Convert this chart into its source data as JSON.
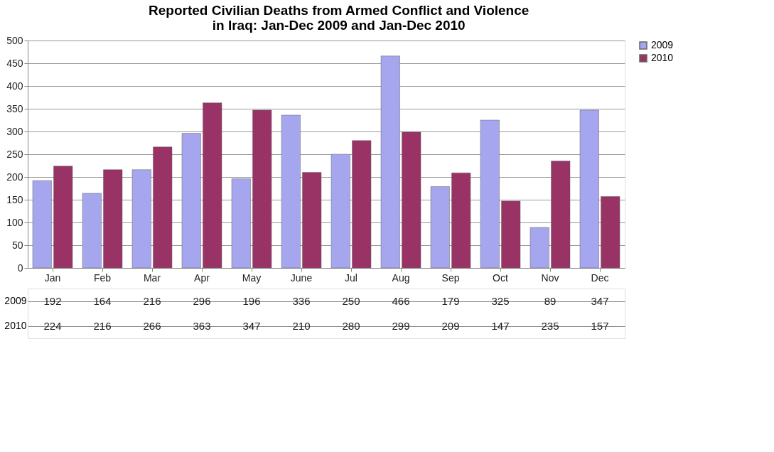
{
  "chart_data": {
    "type": "bar",
    "title": [
      "Reported Civilian Deaths from Armed Conflict and Violence",
      "in Iraq: Jan-Dec 2009 and Jan-Dec 2010"
    ],
    "categories": [
      "Jan",
      "Feb",
      "Mar",
      "Apr",
      "May",
      "June",
      "Jul",
      "Aug",
      "Sep",
      "Oct",
      "Nov",
      "Dec"
    ],
    "series": [
      {
        "name": "2009",
        "color": "#a6a6ee",
        "values": [
          192,
          164,
          216,
          296,
          196,
          336,
          250,
          466,
          179,
          325,
          89,
          347
        ]
      },
      {
        "name": "2010",
        "color": "#993366",
        "values": [
          224,
          216,
          266,
          363,
          347,
          210,
          280,
          299,
          209,
          147,
          235,
          157
        ]
      }
    ],
    "ylim": [
      0,
      500
    ],
    "yticks": [
      0,
      50,
      100,
      150,
      200,
      250,
      300,
      350,
      400,
      450,
      500
    ],
    "grid": "y",
    "legend": "right",
    "data_labels": true
  }
}
